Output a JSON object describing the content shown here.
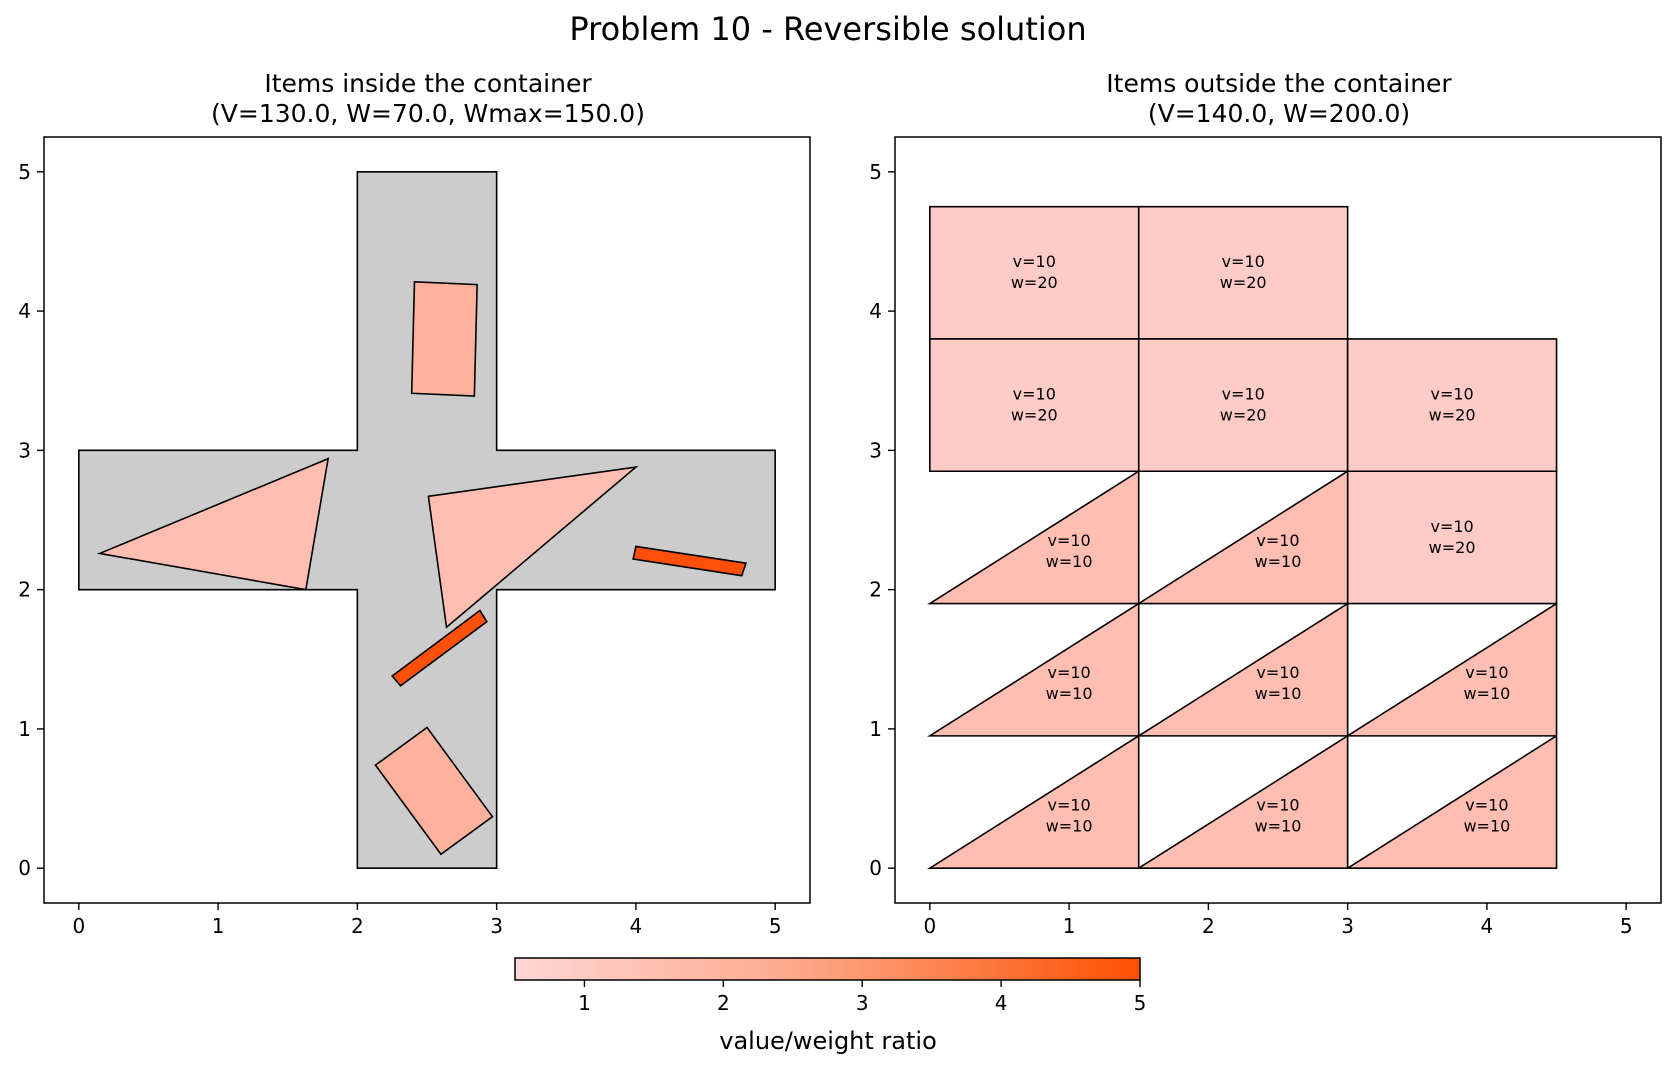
{
  "suptitle": "Problem 10 - Reversible solution",
  "chart_data": [
    {
      "type": "other",
      "panel": "inside",
      "title_line1": "Items inside the container",
      "title_line2": "(V=130.0, W=70.0, Wmax=150.0)",
      "xlim": [
        -0.25,
        5.25
      ],
      "ylim": [
        -0.25,
        5.25
      ],
      "xticks": [
        0,
        1,
        2,
        3,
        4,
        5
      ],
      "yticks": [
        0,
        1,
        2,
        3,
        4,
        5
      ],
      "container": {
        "color": "#cccccc",
        "points": [
          [
            2,
            0
          ],
          [
            3,
            0
          ],
          [
            3,
            2
          ],
          [
            5,
            2
          ],
          [
            5,
            3
          ],
          [
            3,
            3
          ],
          [
            3,
            5
          ],
          [
            2,
            5
          ],
          [
            2,
            3
          ],
          [
            0,
            3
          ],
          [
            0,
            2
          ],
          [
            2,
            2
          ]
        ]
      },
      "items": [
        {
          "ratio": 1.4,
          "color": "#feb29e",
          "points": [
            [
              2.41,
              4.21
            ],
            [
              2.86,
              4.19
            ],
            [
              2.84,
              3.39
            ],
            [
              2.39,
              3.41
            ]
          ]
        },
        {
          "ratio": 1.1,
          "color": "#ffbeb1",
          "points": [
            [
              0.15,
              2.26
            ],
            [
              1.79,
              2.94
            ],
            [
              1.63,
              2.0
            ]
          ]
        },
        {
          "ratio": 1.1,
          "color": "#ffbeb1",
          "points": [
            [
              2.51,
              2.67
            ],
            [
              4.0,
              2.88
            ],
            [
              2.64,
              1.73
            ]
          ]
        },
        {
          "ratio": 5.0,
          "color": "#fe5009",
          "points": [
            [
              4.0,
              2.31
            ],
            [
              4.79,
              2.19
            ],
            [
              4.76,
              2.1
            ],
            [
              3.98,
              2.22
            ]
          ]
        },
        {
          "ratio": 5.0,
          "color": "#fe5009",
          "points": [
            [
              2.25,
              1.38
            ],
            [
              2.88,
              1.85
            ],
            [
              2.93,
              1.77
            ],
            [
              2.31,
              1.31
            ]
          ]
        },
        {
          "ratio": 1.4,
          "color": "#feb29e",
          "points": [
            [
              2.13,
              0.74
            ],
            [
              2.5,
              1.01
            ],
            [
              2.97,
              0.37
            ],
            [
              2.6,
              0.1
            ]
          ]
        }
      ]
    },
    {
      "type": "other",
      "panel": "outside",
      "title_line1": "Items outside the container",
      "title_line2": "(V=140.0, W=200.0)",
      "xlim": [
        -0.25,
        5.25
      ],
      "ylim": [
        -0.25,
        5.25
      ],
      "xticks": [
        0,
        1,
        2,
        3,
        4,
        5
      ],
      "yticks": [
        0,
        1,
        2,
        3,
        4,
        5
      ],
      "items": [
        {
          "value_label": "v=10",
          "weight_label": "w=20",
          "ratio": 0.5,
          "color": "#ffcbc7",
          "shape": "rect",
          "x": [
            0,
            1.5
          ],
          "y": [
            3.8,
            4.75
          ],
          "label_at": [
            0.75,
            4.2
          ]
        },
        {
          "value_label": "v=10",
          "weight_label": "w=20",
          "ratio": 0.5,
          "color": "#ffcbc7",
          "shape": "rect",
          "x": [
            1.5,
            3
          ],
          "y": [
            3.8,
            4.75
          ],
          "label_at": [
            2.25,
            4.2
          ]
        },
        {
          "value_label": "v=10",
          "weight_label": "w=20",
          "ratio": 0.5,
          "color": "#ffcbc7",
          "shape": "rect",
          "x": [
            0,
            1.5
          ],
          "y": [
            2.85,
            3.8
          ],
          "label_at": [
            0.75,
            3.25
          ]
        },
        {
          "value_label": "v=10",
          "weight_label": "w=20",
          "ratio": 0.5,
          "color": "#ffcbc7",
          "shape": "rect",
          "x": [
            1.5,
            3
          ],
          "y": [
            2.85,
            3.8
          ],
          "label_at": [
            2.25,
            3.25
          ]
        },
        {
          "value_label": "v=10",
          "weight_label": "w=20",
          "ratio": 0.5,
          "color": "#ffcbc7",
          "shape": "rect",
          "x": [
            3,
            4.5
          ],
          "y": [
            2.85,
            3.8
          ],
          "label_at": [
            3.75,
            3.25
          ]
        },
        {
          "value_label": "v=10",
          "weight_label": "w=20",
          "ratio": 0.5,
          "color": "#ffcbc7",
          "shape": "rect",
          "x": [
            3,
            4.5
          ],
          "y": [
            1.9,
            2.85
          ],
          "label_at": [
            3.75,
            2.3
          ]
        },
        {
          "value_label": "v=10",
          "weight_label": "w=10",
          "ratio": 1.0,
          "color": "#ffbeb1",
          "shape": "tri",
          "x": [
            0,
            1.5
          ],
          "y": [
            1.9,
            2.85
          ],
          "label_at": [
            1.0,
            2.2
          ]
        },
        {
          "value_label": "v=10",
          "weight_label": "w=10",
          "ratio": 1.0,
          "color": "#ffbeb1",
          "shape": "tri",
          "x": [
            1.5,
            3
          ],
          "y": [
            1.9,
            2.85
          ],
          "label_at": [
            2.5,
            2.2
          ]
        },
        {
          "value_label": "v=10",
          "weight_label": "w=10",
          "ratio": 1.0,
          "color": "#ffbeb1",
          "shape": "tri",
          "x": [
            0,
            1.5
          ],
          "y": [
            0.95,
            1.9
          ],
          "label_at": [
            1.0,
            1.25
          ]
        },
        {
          "value_label": "v=10",
          "weight_label": "w=10",
          "ratio": 1.0,
          "color": "#ffbeb1",
          "shape": "tri",
          "x": [
            1.5,
            3
          ],
          "y": [
            0.95,
            1.9
          ],
          "label_at": [
            2.5,
            1.25
          ]
        },
        {
          "value_label": "v=10",
          "weight_label": "w=10",
          "ratio": 1.0,
          "color": "#ffbeb1",
          "shape": "tri",
          "x": [
            3,
            4.5
          ],
          "y": [
            0.95,
            1.9
          ],
          "label_at": [
            4.0,
            1.25
          ]
        },
        {
          "value_label": "v=10",
          "weight_label": "w=10",
          "ratio": 1.0,
          "color": "#ffbeb1",
          "shape": "tri",
          "x": [
            0,
            1.5
          ],
          "y": [
            0,
            0.95
          ],
          "label_at": [
            1.0,
            0.3
          ]
        },
        {
          "value_label": "v=10",
          "weight_label": "w=10",
          "ratio": 1.0,
          "color": "#ffbeb1",
          "shape": "tri",
          "x": [
            1.5,
            3
          ],
          "y": [
            0,
            0.95
          ],
          "label_at": [
            2.5,
            0.3
          ]
        },
        {
          "value_label": "v=10",
          "weight_label": "w=10",
          "ratio": 1.0,
          "color": "#ffbeb1",
          "shape": "tri",
          "x": [
            3,
            4.5
          ],
          "y": [
            0,
            0.95
          ],
          "label_at": [
            4.0,
            0.3
          ]
        }
      ]
    }
  ],
  "colorbar": {
    "label": "value/weight ratio",
    "range": [
      0.5,
      5
    ],
    "ticks": [
      1,
      2,
      3,
      4,
      5
    ],
    "color_low": "#ffd6d6",
    "color_mid": "#fca98a",
    "color_high": "#fe5000"
  }
}
